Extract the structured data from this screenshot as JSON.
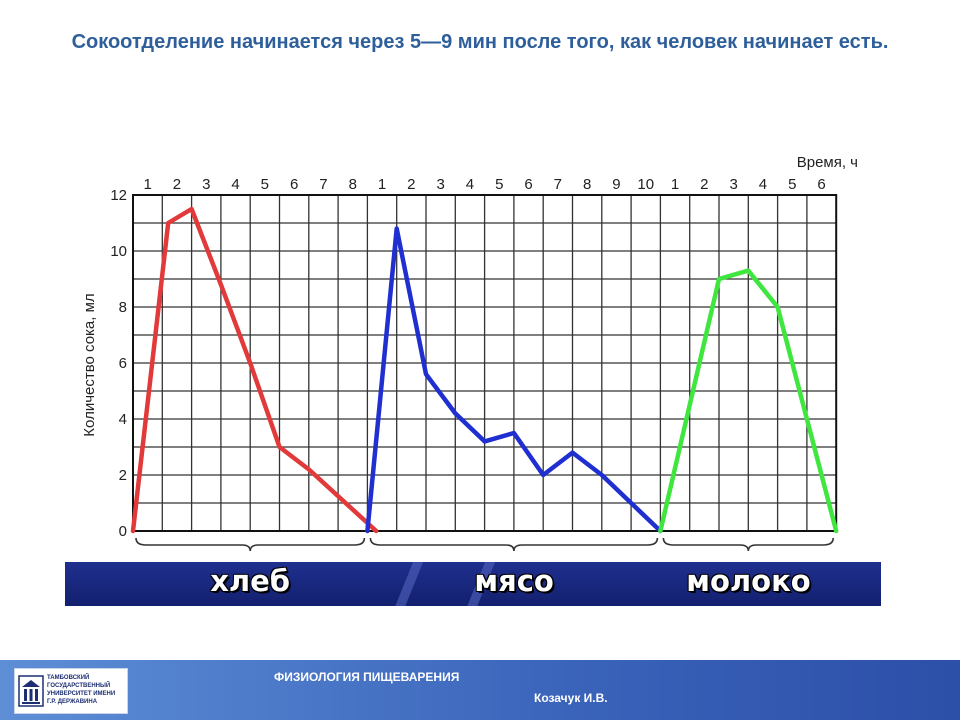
{
  "slide": {
    "title": "Сокоотделение начинается через 5—9 мин после того, как человек начинает есть."
  },
  "chart_data": {
    "type": "line",
    "title": "",
    "xlabel": "Время, ч",
    "ylabel": "Количество сока, мл",
    "ylim": [
      0,
      12
    ],
    "y_ticks": [
      "0",
      "2",
      "4",
      "6",
      "8",
      "10",
      "12"
    ],
    "y_tick_values": [
      0,
      2,
      4,
      6,
      8,
      10,
      12
    ],
    "grid": true,
    "groups": [
      {
        "label": "хлеб",
        "hour_labels": [
          "1",
          "2",
          "3",
          "4",
          "5",
          "6",
          "7",
          "8"
        ]
      },
      {
        "label": "мясо",
        "hour_labels": [
          "1",
          "2",
          "3",
          "4",
          "5",
          "6",
          "7",
          "8",
          "9",
          "10"
        ]
      },
      {
        "label": "молоко",
        "hour_labels": [
          "1",
          "2",
          "3",
          "4",
          "5",
          "6"
        ]
      }
    ],
    "series": [
      {
        "name": "хлеб",
        "color": "#e23a3a",
        "x": [
          0,
          1.2,
          2.0,
          3.0,
          4.0,
          5.0,
          6.0,
          8.3
        ],
        "y": [
          0,
          11.0,
          11.5,
          8.8,
          6.0,
          3.0,
          2.2,
          0
        ]
      },
      {
        "name": "мясо",
        "color": "#1f2fd0",
        "x": [
          0,
          1.0,
          2.0,
          3.0,
          4.0,
          5.0,
          6.0,
          7.0,
          8.0,
          10.0
        ],
        "y": [
          0,
          10.8,
          5.6,
          4.2,
          3.2,
          3.5,
          2.0,
          2.8,
          2.0,
          0
        ]
      },
      {
        "name": "молоко",
        "color": "#3ee63e",
        "x": [
          0,
          2.0,
          3.0,
          4.0,
          6.0
        ],
        "y": [
          0,
          9.0,
          9.3,
          8.0,
          0
        ]
      }
    ]
  },
  "footer": {
    "logo_text": "Тамбовский государственный университет имени Г.Р. Державина",
    "course": "ФИЗИОЛОГИЯ ПИЩЕВАРЕНИЯ",
    "author": "Козачук И.В."
  }
}
